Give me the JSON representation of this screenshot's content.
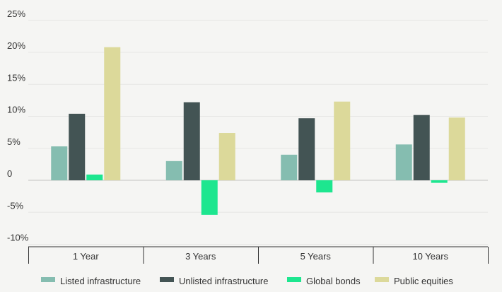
{
  "chart_data": {
    "type": "bar",
    "categories": [
      "1 Year",
      "3 Years",
      "5 Years",
      "10 Years"
    ],
    "series": [
      {
        "name": "Listed infrastructure",
        "color": "#85bdb0",
        "values": [
          5.3,
          3.0,
          4.0,
          5.6
        ]
      },
      {
        "name": "Unlisted infrastructure",
        "color": "#435454",
        "values": [
          10.4,
          12.2,
          9.7,
          10.2
        ]
      },
      {
        "name": "Global bonds",
        "color": "#1de68f",
        "values": [
          0.9,
          -5.4,
          -1.9,
          -0.4
        ]
      },
      {
        "name": "Public equities",
        "color": "#dcd99a",
        "values": [
          20.8,
          7.4,
          12.3,
          9.8
        ]
      }
    ],
    "y_ticks": [
      {
        "value": 25,
        "label": "25%"
      },
      {
        "value": 20,
        "label": "20%"
      },
      {
        "value": 15,
        "label": "15%"
      },
      {
        "value": 10,
        "label": "10%"
      },
      {
        "value": 5,
        "label": "5%"
      },
      {
        "value": 0,
        "label": "0"
      },
      {
        "value": -5,
        "label": "-5%"
      },
      {
        "value": -10,
        "label": "-10%"
      }
    ],
    "ylim": [
      -10,
      25
    ],
    "grid": true,
    "legend": "bottom"
  }
}
